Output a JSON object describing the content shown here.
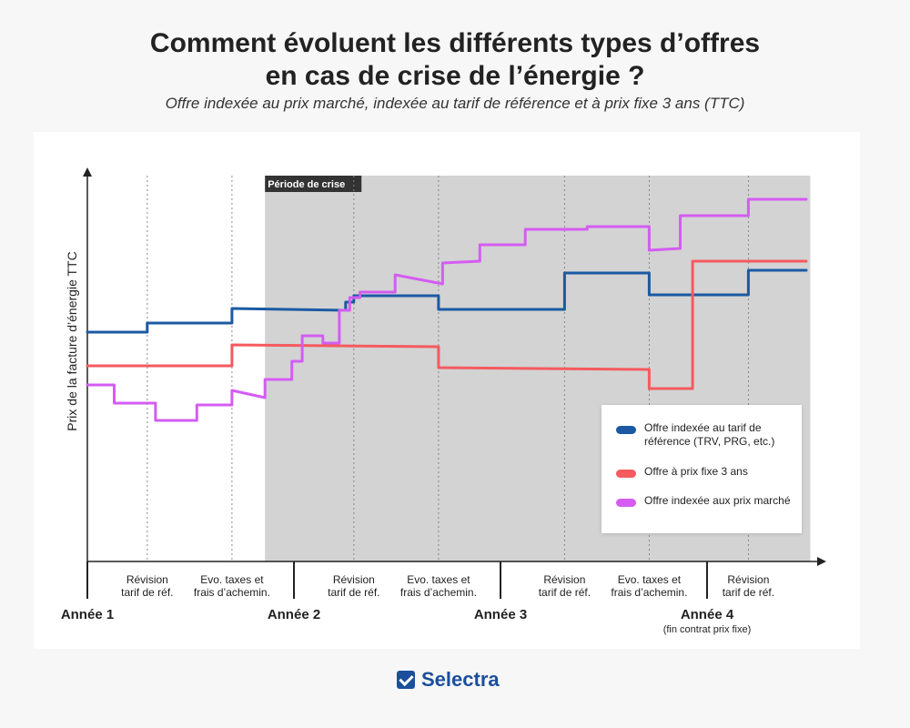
{
  "title_line1": "Comment évoluent les différents types d’offres",
  "title_line2": "en cas de crise de l’énergie ?",
  "subtitle": "Offre indexée au prix marché, indexée au tarif de référence et à prix fixe 3 ans (TTC)",
  "brand": "Selectra",
  "colors": {
    "blue": "#1b5aa3",
    "red": "#f55a5f",
    "magenta": "#d45cf2",
    "crisis": "#d3d3d3"
  },
  "chart_data": {
    "type": "line",
    "ylabel": "Prix de la facture d’énergie TTC",
    "xlim": [
      0,
      3.5
    ],
    "crisis_period": {
      "label": "Période de crise",
      "start": 0.86,
      "end": 3.5
    },
    "year_markers": [
      {
        "x": 0,
        "label": "Année 1",
        "sub": ""
      },
      {
        "x": 1,
        "label": "Année 2",
        "sub": ""
      },
      {
        "x": 2,
        "label": "Année 3",
        "sub": ""
      },
      {
        "x": 3,
        "label": "Année 4",
        "sub": "(fin contrat prix fixe)"
      }
    ],
    "events": [
      {
        "x": 0.29,
        "line1": "Révision",
        "line2": "tarif de réf."
      },
      {
        "x": 0.7,
        "line1": "Evo. taxes et",
        "line2": "frais d’achemin."
      },
      {
        "x": 1.29,
        "line1": "Révision",
        "line2": "tarif de réf."
      },
      {
        "x": 1.7,
        "line1": "Evo. taxes et",
        "line2": "frais d’achemin."
      },
      {
        "x": 2.31,
        "line1": "Révision",
        "line2": "tarif de réf."
      },
      {
        "x": 2.72,
        "line1": "Evo. taxes et",
        "line2": "frais d’achemin."
      },
      {
        "x": 3.2,
        "line1": "Révision",
        "line2": "tarif de réf."
      }
    ],
    "legend": [
      {
        "label": "Offre indexée au tarif de référence (TRV, PRG, etc.)",
        "color": "#1b5aa3"
      },
      {
        "label": "Offre à prix fixe 3 ans",
        "color": "#f55a5f"
      },
      {
        "label": "Offre indexée aux prix marché",
        "color": "#d45cf2"
      }
    ],
    "series": [
      {
        "name": "Offre indexée au tarif de référence (TRV, PRG, etc.)",
        "color": "#1b5aa3",
        "points": [
          [
            0,
            252
          ],
          [
            0.29,
            252
          ],
          [
            0.29,
            262
          ],
          [
            0.7,
            262
          ],
          [
            0.7,
            278
          ],
          [
            1.25,
            276
          ],
          [
            1.25,
            285
          ],
          [
            1.29,
            285
          ],
          [
            1.29,
            292
          ],
          [
            1.7,
            292
          ],
          [
            1.7,
            277
          ],
          [
            2.31,
            277
          ],
          [
            2.31,
            317
          ],
          [
            2.72,
            317
          ],
          [
            2.72,
            293
          ],
          [
            3.2,
            293
          ],
          [
            3.2,
            320
          ],
          [
            3.48,
            320
          ]
        ]
      },
      {
        "name": "Offre à prix fixe 3 ans",
        "color": "#f55a5f",
        "points": [
          [
            0,
            215
          ],
          [
            0.7,
            215
          ],
          [
            0.7,
            238
          ],
          [
            1.7,
            236
          ],
          [
            1.7,
            213
          ],
          [
            2.72,
            211
          ],
          [
            2.72,
            190
          ],
          [
            2.93,
            190
          ],
          [
            2.93,
            330
          ],
          [
            3.48,
            330
          ]
        ]
      },
      {
        "name": "Offre indexée aux prix marché",
        "color": "#d45cf2",
        "points": [
          [
            0,
            194
          ],
          [
            0.13,
            194
          ],
          [
            0.13,
            174
          ],
          [
            0.33,
            174
          ],
          [
            0.33,
            155
          ],
          [
            0.53,
            155
          ],
          [
            0.53,
            172
          ],
          [
            0.7,
            172
          ],
          [
            0.7,
            188
          ],
          [
            0.86,
            180
          ],
          [
            0.86,
            200
          ],
          [
            0.99,
            200
          ],
          [
            0.99,
            220
          ],
          [
            1.04,
            220
          ],
          [
            1.04,
            248
          ],
          [
            1.14,
            248
          ],
          [
            1.14,
            240
          ],
          [
            1.22,
            240
          ],
          [
            1.22,
            276
          ],
          [
            1.27,
            276
          ],
          [
            1.27,
            290
          ],
          [
            1.32,
            290
          ],
          [
            1.32,
            296
          ],
          [
            1.49,
            296
          ],
          [
            1.49,
            315
          ],
          [
            1.72,
            305
          ],
          [
            1.72,
            328
          ],
          [
            1.9,
            330
          ],
          [
            1.9,
            348
          ],
          [
            2.12,
            348
          ],
          [
            2.12,
            365
          ],
          [
            2.42,
            365
          ],
          [
            2.42,
            368
          ],
          [
            2.72,
            368
          ],
          [
            2.72,
            342
          ],
          [
            2.87,
            344
          ],
          [
            2.87,
            380
          ],
          [
            3.2,
            380
          ],
          [
            3.2,
            398
          ],
          [
            3.48,
            398
          ]
        ]
      }
    ]
  }
}
